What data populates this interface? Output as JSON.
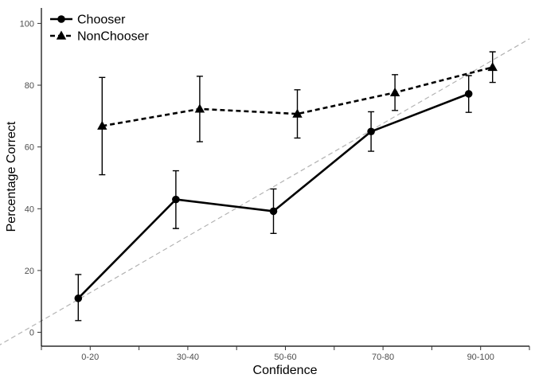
{
  "chart_data": {
    "type": "line",
    "xlabel": "Confidence",
    "ylabel": "Percentage Correct",
    "categories": [
      "0-20",
      "30-40",
      "50-60",
      "70-80",
      "90-100"
    ],
    "y_ticks": [
      0,
      20,
      40,
      60,
      80,
      100
    ],
    "ylim": [
      -4.5,
      105
    ],
    "reference_line": {
      "style": "dashed",
      "color": "#b3b3b3",
      "from": [
        -0.95,
        -4.5
      ],
      "to": [
        4.5,
        95
      ]
    },
    "legend_position": "top-left",
    "grid": false,
    "series": [
      {
        "name": "Chooser",
        "marker": "circle",
        "line_style": "solid",
        "color": "#000000",
        "values": [
          11.0,
          43.0,
          39.2,
          65.0,
          77.2
        ],
        "error_low": [
          3.8,
          33.6,
          32.0,
          58.6,
          71.2
        ],
        "error_high": [
          18.7,
          52.3,
          46.4,
          71.4,
          83.1
        ]
      },
      {
        "name": "NonChooser",
        "marker": "triangle",
        "line_style": "dashed",
        "color": "#000000",
        "values": [
          66.8,
          72.3,
          70.7,
          77.6,
          85.8
        ],
        "error_low": [
          51.0,
          61.7,
          62.9,
          71.8,
          80.9
        ],
        "error_high": [
          82.5,
          82.9,
          78.5,
          83.4,
          90.8
        ]
      }
    ]
  }
}
